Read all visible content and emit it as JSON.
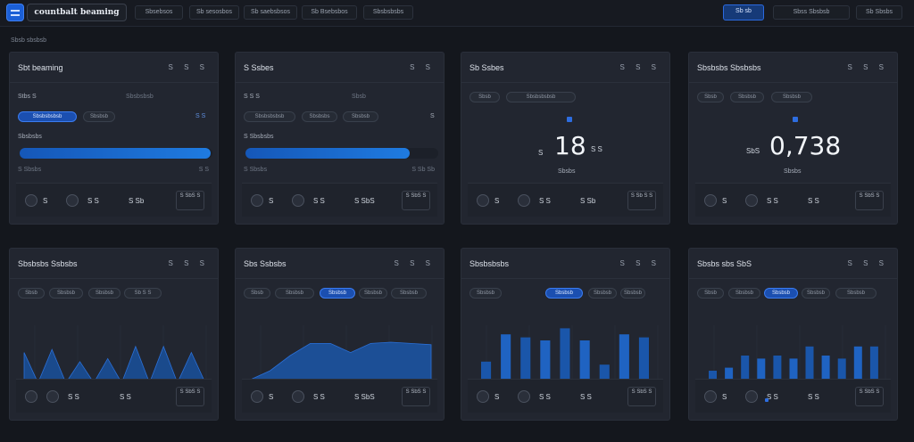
{
  "app": {
    "title": "countbalt beaming"
  },
  "toolbar": {
    "tabs": [
      "Sbsebsos",
      "Sb sesosbos",
      "Sb saebsbsos",
      "Sb Bsebsbos",
      "Sbsbsbsbs"
    ],
    "primary_label": "Sb sb",
    "btn_2": "Sbss  Sbsbsb",
    "btn_3": "Sb  Sbsbs"
  },
  "breadcrumb": "Sbsb sbsbsb",
  "cards": [
    {
      "title": "Sbt beaming",
      "actions": "S S S",
      "row1": [
        "Stbs S",
        "Sbsbsbsb"
      ],
      "chips": [
        "Sbsbsbsbsb",
        "Sbsbsb",
        "S S"
      ],
      "label2": "Sbsbsbs",
      "progress": 0.99,
      "range": [
        "S Sbsbs",
        "S S"
      ],
      "footer": {
        "v1": "S",
        "v2": "S S",
        "v3": "S S",
        "v4": "S Sb",
        "box": "S SbS S"
      }
    },
    {
      "title": "S Ssbes",
      "actions": "S S",
      "row1": [
        "S S S",
        "Sbsb"
      ],
      "chips": [
        "Sbsbsbsbsb",
        "Sbsbsbs",
        "Sbsbsb",
        "S"
      ],
      "label2": "S Sbsbsbs",
      "progress": 0.85,
      "range": [
        "S Sbsbs",
        "S Sb Sb"
      ],
      "footer": {
        "v1": "S",
        "v2": "S S",
        "v3": "S SbS",
        "v4": "S S",
        "box": "S SbS S"
      }
    },
    {
      "title": "Sb Ssbes",
      "actions": "S S S",
      "chips": [
        "Sbsb",
        "Sbsbsbsbsb"
      ],
      "big": "18",
      "big_left": "S",
      "big_right": "S S",
      "sub": "Sbsbs",
      "footer": {
        "v1": "S",
        "v2": "S S",
        "v3": "S S",
        "v4": "S Sb",
        "box": "S Sb S S"
      }
    },
    {
      "title": "Sbsbsbs Sbsbsbs",
      "actions": "S S S",
      "chips": [
        "Sbsb",
        "Sbsbsb",
        "Sbsbsb"
      ],
      "big": "0,738",
      "big_left": "SbS",
      "sub": "Sbsbs",
      "footer": {
        "v1": "S",
        "v2": "S S",
        "v3": "S S",
        "v4": "S S",
        "box": "S SbS S"
      }
    },
    {
      "title": "Sbsbsbs Ssbsbs",
      "actions": "S S S",
      "chips": [
        "Sbsb",
        "Sbsbsb",
        "Sbsbsb",
        "Sb S S"
      ],
      "footer": {
        "v1": "S",
        "v2": "S S",
        "v3": "S S",
        "box": "S SbS S"
      }
    },
    {
      "title": "Sbs Ssbsbs",
      "actions": "S S S",
      "chips": [
        "Sbsb",
        "Sbsbsb",
        "Sbsbsb",
        "Sbsbsb",
        "Sbsbsb"
      ],
      "active_chip": 2,
      "footer": {
        "v1": "S",
        "v2": "S S",
        "v3": "S SbS",
        "v4": "S S",
        "box": "S SbS S"
      }
    },
    {
      "title": "Sbsbsbsbs",
      "actions": "S S S",
      "chips": [
        "Sbsbsb",
        "Sbsbsb",
        "Sbsbsb",
        "Sbsbsb"
      ],
      "active_chip": 1,
      "footer": {
        "v1": "S",
        "v2": "S S",
        "v3": "S S",
        "v4": "S S",
        "box": "S SbS S"
      }
    },
    {
      "title": "Sbsbs sbs SbS",
      "actions": "S S S",
      "chips": [
        "Sbsb",
        "Sbsbsb",
        "Sbsbsb",
        "Sbsbsb",
        "Sbsbsb"
      ],
      "active_chip": 2,
      "footer": {
        "v1": "S",
        "v2": "S S",
        "v3": "S S",
        "v4": "S S",
        "box": "S SbS S"
      }
    }
  ],
  "chart_data": [
    {
      "type": "area",
      "values": [
        0.55,
        0.05,
        0.6,
        0.05,
        0.4,
        0.05,
        0.45,
        0.05,
        0.65,
        0.05,
        0.65,
        0.05,
        0.55,
        0.05
      ]
    },
    {
      "type": "area",
      "values": [
        0.1,
        0.25,
        0.5,
        0.7,
        0.7,
        0.55,
        0.7,
        0.72,
        0.7,
        0.68
      ]
    },
    {
      "type": "bar",
      "values": [
        0.4,
        0.85,
        0.8,
        0.75,
        0.95,
        0.75,
        0.35,
        0.85,
        0.8
      ]
    },
    {
      "type": "bar",
      "values": [
        0.25,
        0.3,
        0.5,
        0.45,
        0.5,
        0.45,
        0.65,
        0.5,
        0.45,
        0.65,
        0.65
      ]
    }
  ],
  "colors": {
    "accent": "#1f6ee0",
    "bg": "#14171d",
    "card": "#222630"
  }
}
